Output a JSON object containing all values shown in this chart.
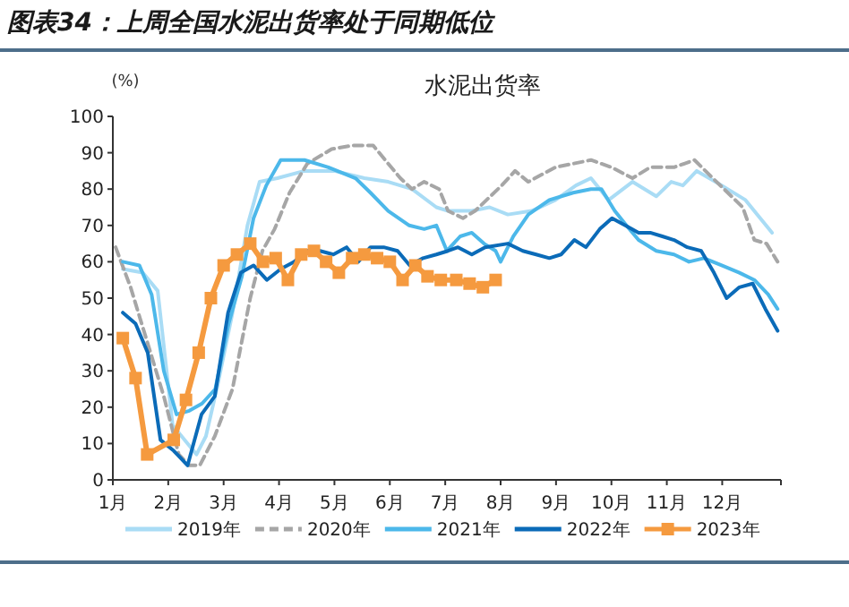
{
  "chart_data": {
    "type": "line",
    "title": "图表34：上周全国水泥出货率处于同期低位",
    "subtitle": "水泥出货率",
    "ylabel": "(%)",
    "xlim": [
      1,
      13.06
    ],
    "xticks": [
      {
        "value": 1,
        "label": "1月"
      },
      {
        "value": 2,
        "label": "2月"
      },
      {
        "value": 3,
        "label": "3月"
      },
      {
        "value": 4,
        "label": "4月"
      },
      {
        "value": 5,
        "label": "5月"
      },
      {
        "value": 6,
        "label": "6月"
      },
      {
        "value": 7,
        "label": "7月"
      },
      {
        "value": 8,
        "label": "8月"
      },
      {
        "value": 9,
        "label": "9月"
      },
      {
        "value": 10,
        "label": "10月"
      },
      {
        "value": 11,
        "label": "11月"
      },
      {
        "value": 12,
        "label": "12月"
      }
    ],
    "ylim": [
      0,
      100
    ],
    "yticks": [
      0,
      10,
      20,
      30,
      40,
      50,
      60,
      70,
      80,
      90,
      100
    ],
    "grid": false,
    "legend": "bottom",
    "marker": "none",
    "series": [
      {
        "name": "2019年",
        "color": "#a9dcf5",
        "x": [
          1.18,
          1.54,
          1.81,
          2.08,
          2.35,
          2.51,
          2.68,
          2.89,
          3.16,
          3.43,
          3.65,
          3.97,
          4.46,
          5.0,
          5.54,
          5.97,
          6.4,
          6.84,
          7.05,
          7.48,
          7.8,
          8.13,
          8.56,
          8.99,
          9.36,
          9.63,
          9.95,
          10.38,
          10.81,
          11.08,
          11.29,
          11.54,
          11.99,
          12.42,
          12.63,
          12.9
        ],
        "values": [
          58,
          57,
          52,
          15,
          10,
          7,
          12,
          26,
          46,
          70,
          82,
          83,
          85,
          85,
          83,
          82,
          80,
          75,
          74,
          74,
          75,
          73,
          74,
          77,
          81,
          83,
          77,
          82,
          78,
          82,
          81,
          85,
          81,
          77,
          73,
          68
        ]
      },
      {
        "name": "2020年",
        "color": "#a6a6a6",
        "line_style": "dashed",
        "x": [
          1.05,
          1.32,
          1.64,
          1.92,
          2.19,
          2.38,
          2.57,
          2.84,
          3.16,
          3.48,
          3.7,
          3.92,
          4.19,
          4.51,
          4.95,
          5.32,
          5.7,
          5.97,
          6.19,
          6.4,
          6.62,
          6.89,
          7.05,
          7.32,
          7.54,
          8.02,
          8.26,
          8.5,
          8.99,
          9.63,
          10.0,
          10.38,
          10.7,
          11.13,
          11.5,
          11.83,
          12.1,
          12.37,
          12.58,
          12.8,
          13.0
        ],
        "values": [
          64,
          53,
          37,
          23,
          7,
          4,
          4,
          12,
          25,
          50,
          63,
          69,
          79,
          87,
          91,
          92,
          92,
          87,
          83,
          80,
          82,
          80,
          74,
          72,
          74,
          81,
          85,
          82,
          86,
          88,
          86,
          83,
          86,
          86,
          88,
          83,
          79,
          75,
          66,
          65,
          60
        ]
      },
      {
        "name": "2021年",
        "color": "#4cb8ea",
        "x": [
          1.18,
          1.48,
          1.7,
          1.92,
          2.15,
          2.38,
          2.61,
          2.85,
          3.09,
          3.33,
          3.54,
          3.77,
          4.03,
          4.46,
          4.89,
          5.38,
          5.65,
          5.97,
          6.35,
          6.62,
          6.84,
          7.03,
          7.27,
          7.48,
          7.7,
          7.91,
          8.0,
          8.23,
          8.5,
          8.88,
          9.31,
          9.63,
          9.82,
          10.06,
          10.27,
          10.49,
          10.81,
          11.13,
          11.4,
          11.67,
          11.99,
          12.31,
          12.58,
          12.83,
          13.0
        ],
        "values": [
          60,
          59,
          51,
          30,
          18,
          19,
          21,
          25,
          43,
          56,
          72,
          81,
          88,
          88,
          86,
          83,
          79,
          74,
          70,
          69,
          70,
          63,
          67,
          68,
          65,
          63,
          60,
          67,
          73,
          77,
          79,
          80,
          80,
          74,
          70,
          66,
          63,
          62,
          60,
          61,
          59,
          57,
          55,
          51,
          47
        ]
      },
      {
        "name": "2022年",
        "color": "#0b6bb8",
        "x": [
          1.18,
          1.41,
          1.63,
          1.86,
          2.1,
          2.35,
          2.6,
          2.84,
          3.08,
          3.31,
          3.54,
          3.78,
          4.03,
          4.27,
          4.5,
          4.74,
          4.98,
          5.22,
          5.43,
          5.65,
          5.89,
          6.14,
          6.36,
          6.6,
          6.84,
          7.05,
          7.23,
          7.48,
          7.72,
          8.13,
          8.4,
          8.64,
          8.88,
          9.09,
          9.33,
          9.54,
          9.79,
          10.01,
          10.25,
          10.49,
          10.7,
          10.92,
          11.13,
          11.37,
          11.62,
          11.85,
          12.08,
          12.31,
          12.55,
          12.78,
          13.0
        ],
        "values": [
          46,
          43,
          35,
          11,
          8,
          4,
          18,
          23,
          46,
          57,
          59,
          55,
          58,
          60,
          63,
          63,
          62,
          64,
          60,
          64,
          64,
          63,
          59,
          61,
          62,
          63,
          64,
          62,
          64,
          65,
          63,
          62,
          61,
          62,
          66,
          64,
          69,
          72,
          70,
          68,
          68,
          67,
          66,
          64,
          63,
          57,
          50,
          53,
          54,
          47,
          41
        ]
      },
      {
        "name": "2023年",
        "color": "#f59a3f",
        "marker": "square",
        "x": [
          1.18,
          1.41,
          1.62,
          2.1,
          2.32,
          2.55,
          2.77,
          3.0,
          3.24,
          3.48,
          3.71,
          3.94,
          4.16,
          4.4,
          4.63,
          4.85,
          5.08,
          5.32,
          5.54,
          5.77,
          6.0,
          6.23,
          6.46,
          6.68,
          6.92,
          7.2,
          7.44,
          7.68,
          7.91
        ],
        "values": [
          39,
          28,
          7,
          11,
          22,
          35,
          50,
          59,
          62,
          65,
          60,
          61,
          55,
          62,
          63,
          60,
          57,
          61,
          62,
          61,
          60,
          55,
          59,
          56,
          55,
          55,
          54,
          53,
          55
        ]
      }
    ]
  }
}
